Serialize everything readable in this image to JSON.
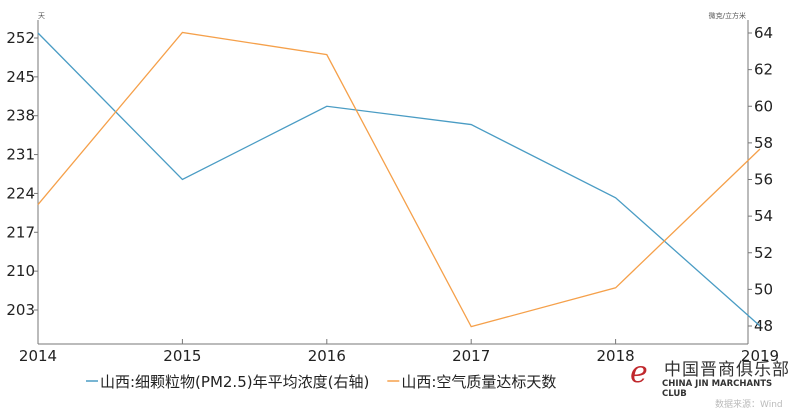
{
  "chart_data": {
    "type": "line",
    "x": [
      "2014",
      "2015",
      "2016",
      "2017",
      "2018",
      "2019"
    ],
    "left_axis": {
      "unit": "天",
      "ticks": [
        203,
        210,
        217,
        224,
        231,
        238,
        245,
        252
      ],
      "range": [
        196,
        256
      ]
    },
    "right_axis": {
      "unit": "微克/立方米",
      "ticks": [
        48,
        50,
        52,
        54,
        56,
        58,
        60,
        62,
        64
      ],
      "range": [
        46.5,
        65.5
      ]
    },
    "series": [
      {
        "name": "山西:细颗粒物(PM2.5)年平均浓度(右轴)",
        "axis": "right",
        "color": "#4a9cc4",
        "values": [
          64,
          56,
          60,
          59,
          55,
          48
        ]
      },
      {
        "name": "山西:空气质量达标天数",
        "axis": "left",
        "color": "#f5a04a",
        "values": [
          222,
          253,
          249,
          200,
          207,
          232
        ]
      }
    ],
    "grid": false,
    "legend": "bottom"
  },
  "watermark": {
    "cn": "中国晋商俱乐部",
    "en": "CHINA JIN MARCHANTS CLUB"
  },
  "source": "数据来源：Wind"
}
